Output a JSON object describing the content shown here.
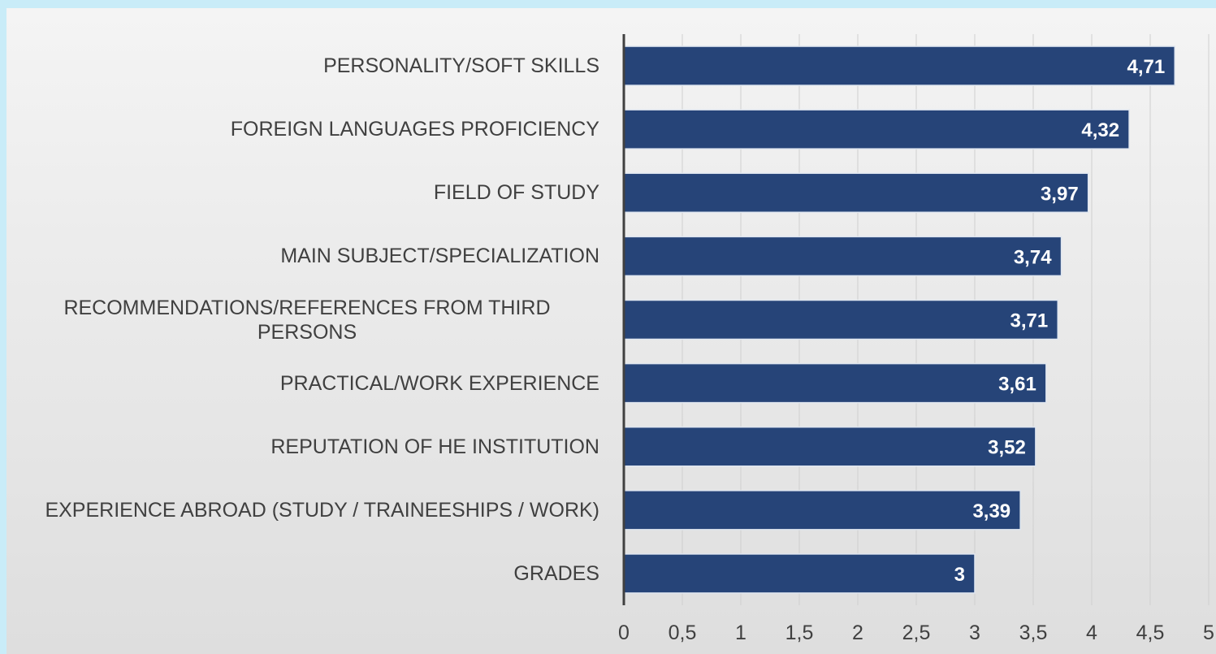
{
  "chart_data": {
    "type": "bar",
    "orientation": "horizontal",
    "categories": [
      "PERSONALITY/SOFT SKILLS",
      "FOREIGN LANGUAGES PROFICIENCY",
      "FIELD OF STUDY",
      "MAIN SUBJECT/SPECIALIZATION",
      "RECOMMENDATIONS/REFERENCES FROM THIRD PERSONS",
      "PRACTICAL/WORK EXPERIENCE",
      "REPUTATION OF HE INSTITUTION",
      "EXPERIENCE ABROAD (STUDY / TRAINEESHIPS / WORK)",
      "GRADES"
    ],
    "values": [
      4.71,
      4.32,
      3.97,
      3.74,
      3.71,
      3.61,
      3.52,
      3.39,
      3
    ],
    "value_labels": [
      "4,71",
      "4,32",
      "3,97",
      "3,74",
      "3,71",
      "3,61",
      "3,52",
      "3,39",
      "3"
    ],
    "color": "#264478",
    "xlim": [
      0,
      5
    ],
    "xticks": [
      0,
      {
        "value": 0.5,
        "label": "0,5"
      },
      1,
      {
        "value": 1.5,
        "label": "1,5"
      },
      2,
      {
        "value": 2.5,
        "label": "2,5"
      },
      3,
      {
        "value": 3.5,
        "label": "3,5"
      },
      4,
      {
        "value": 4.5,
        "label": "4,5"
      },
      5
    ],
    "grid": true
  }
}
